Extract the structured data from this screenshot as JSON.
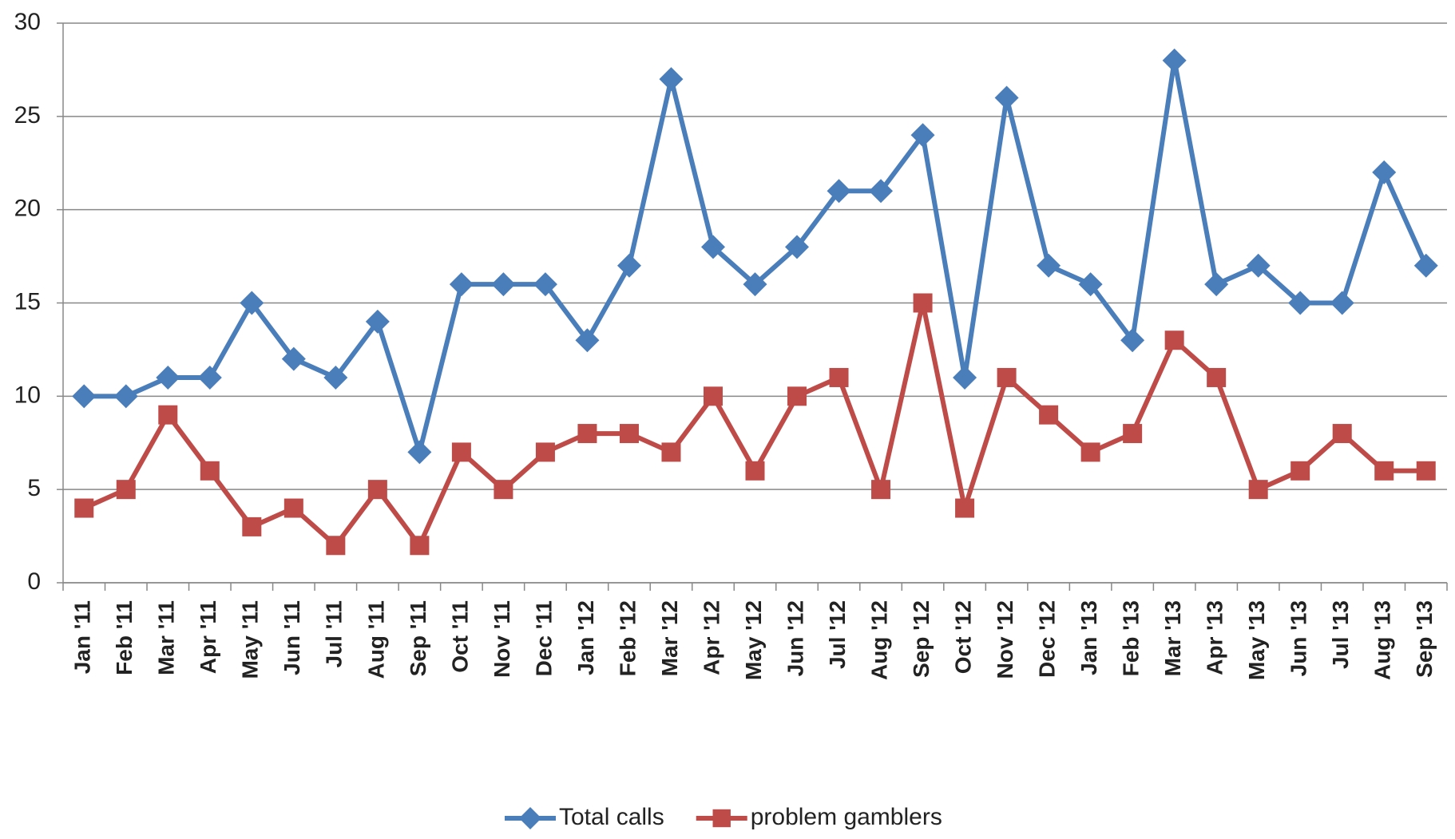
{
  "chart_data": {
    "type": "line",
    "categories": [
      "Jan '11",
      "Feb '11",
      "Mar '11",
      "Apr '11",
      "May '11",
      "Jun '11",
      "Jul '11",
      "Aug '11",
      "Sep '11",
      "Oct '11",
      "Nov '11",
      "Dec '11",
      "Jan '12",
      "Feb '12",
      "Mar '12",
      "Apr '12",
      "May '12",
      "Jun '12",
      "Jul '12",
      "Aug '12",
      "Sep '12",
      "Oct '12",
      "Nov '12",
      "Dec '12",
      "Jan '13",
      "Feb '13",
      "Mar '13",
      "Apr '13",
      "May '13",
      "Jun '13",
      "Jul '13",
      "Aug '13",
      "Sep '13"
    ],
    "series": [
      {
        "name": "Total calls",
        "color": "#4a7ebb",
        "marker": "diamond",
        "values": [
          10,
          10,
          11,
          11,
          15,
          12,
          11,
          14,
          7,
          16,
          16,
          16,
          13,
          17,
          27,
          18,
          16,
          18,
          21,
          21,
          24,
          11,
          26,
          17,
          16,
          13,
          28,
          16,
          17,
          15,
          15,
          22,
          17
        ]
      },
      {
        "name": "problem gamblers",
        "color": "#be4b48",
        "marker": "square",
        "values": [
          4,
          5,
          9,
          6,
          3,
          4,
          2,
          5,
          2,
          7,
          5,
          7,
          8,
          8,
          7,
          10,
          6,
          10,
          11,
          5,
          15,
          4,
          11,
          9,
          7,
          8,
          13,
          11,
          5,
          6,
          8,
          6,
          6
        ]
      }
    ],
    "ylim": [
      0,
      30
    ],
    "yticks": [
      0,
      5,
      10,
      15,
      20,
      25,
      30
    ],
    "grid": true,
    "legend": "bottom"
  }
}
